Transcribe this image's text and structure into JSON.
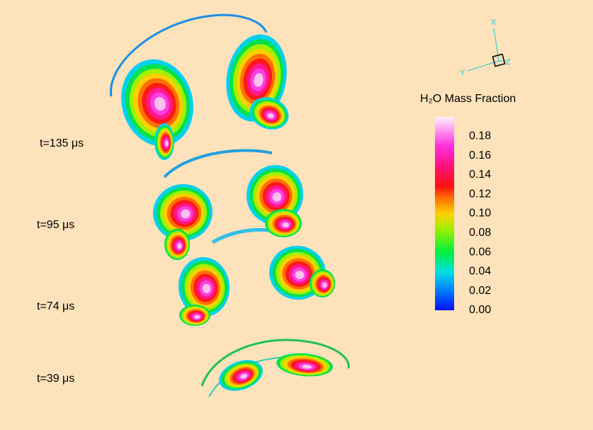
{
  "time_labels": [
    "t=135 μs",
    "t=95 μs",
    "t=74 μs",
    "t=39 μs"
  ],
  "colorbar": {
    "title": "H₂O Mass Fraction",
    "lim": [
      0,
      0.2
    ],
    "ticks": [
      {
        "value": 0,
        "label": "0.00"
      },
      0.02,
      0.04,
      0.06,
      0.08,
      {
        "value": 0.1,
        "label": "0.10"
      },
      0.12,
      0.14,
      0.16,
      0.18
    ]
  },
  "triad": {
    "x": "X",
    "y": "Y",
    "z": "Z"
  }
}
